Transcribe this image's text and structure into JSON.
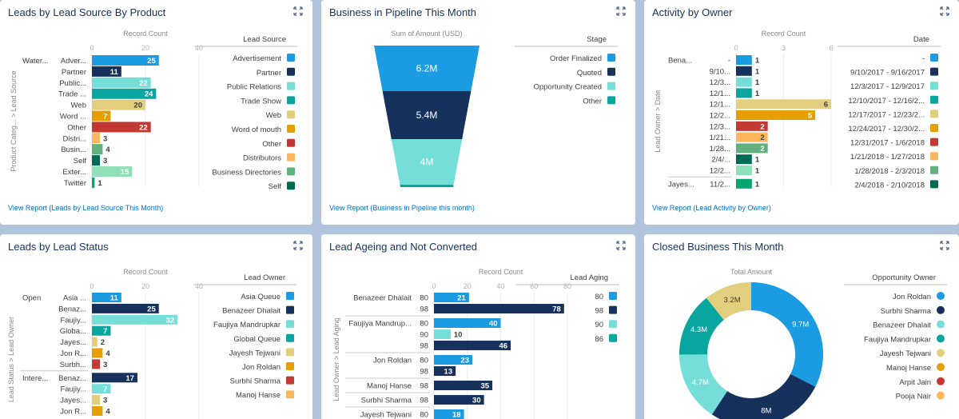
{
  "colors": {
    "c1": "#1b9ce2",
    "c2": "#16325c",
    "c3": "#76ded9",
    "c4": "#08a69e",
    "c5": "#e2ce7d",
    "c6": "#e69f00",
    "c7": "#c23934",
    "c8": "#ffb75d",
    "c9": "#60b17d",
    "c10": "#006a55",
    "c11": "#8fe0b8",
    "c12": "#00a66f"
  },
  "cards": {
    "lead_source": {
      "title": "Leads by Lead Source By Product",
      "view_report": "View Report (Leads by Lead Source This Month)"
    },
    "pipeline": {
      "title": "Business in Pipeline This Month",
      "view_report": "View Report (Business in Pipeline this month)"
    },
    "activity": {
      "title": "Activity by Owner",
      "view_report": "View Report (Lead Activity by Owner)"
    },
    "lead_status": {
      "title": "Leads by Lead Status"
    },
    "lead_ageing": {
      "title": "Lead Ageing and Not Converted"
    },
    "closed_business": {
      "title": "Closed Business This Month"
    }
  },
  "chart_data": [
    {
      "id": "lead_source",
      "type": "bar",
      "orientation": "horizontal",
      "xlabel": "Record Count",
      "ylabel": "Product Categ... > Lead Source",
      "xlim": [
        0,
        40
      ],
      "ticks": [
        "0",
        "20",
        "40"
      ],
      "group_label": "Water...",
      "categories": [
        "Adver...",
        "Partner",
        "Public...",
        "Trade ...",
        "Web",
        "Word ...",
        "Other",
        "Distri...",
        "Busin...",
        "Self",
        "Exter...",
        "Twitter"
      ],
      "values": [
        25,
        11,
        22,
        24,
        20,
        7,
        22,
        3,
        4,
        3,
        15,
        1
      ],
      "color_keys": [
        "c1",
        "c2",
        "c3",
        "c4",
        "c5",
        "c6",
        "c7",
        "c8",
        "c9",
        "c10",
        "c11",
        "c12"
      ],
      "legend_title": "Lead Source",
      "legend": [
        {
          "label": "Advertisement",
          "color_key": "c1"
        },
        {
          "label": "Partner",
          "color_key": "c2"
        },
        {
          "label": "Public Relations",
          "color_key": "c3"
        },
        {
          "label": "Trade Show",
          "color_key": "c4"
        },
        {
          "label": "Web",
          "color_key": "c5"
        },
        {
          "label": "Word of mouth",
          "color_key": "c6"
        },
        {
          "label": "Other",
          "color_key": "c7"
        },
        {
          "label": "Distributors",
          "color_key": "c8"
        },
        {
          "label": "Business Directories",
          "color_key": "c9"
        },
        {
          "label": "Self",
          "color_key": "c10"
        }
      ]
    },
    {
      "id": "pipeline",
      "type": "funnel",
      "title": "Sum of Amount (USD)",
      "categories": [
        "Order Finalized",
        "Quoted",
        "Opportunity Created",
        "Other"
      ],
      "values": [
        6.2,
        5.4,
        4.0,
        0.1
      ],
      "value_labels": [
        "6.2M",
        "5.4M",
        "4M",
        ""
      ],
      "unit": "M USD",
      "color_keys": [
        "c1",
        "c2",
        "c3",
        "c4"
      ],
      "legend_title": "Stage",
      "legend": [
        {
          "label": "Order Finalized",
          "color_key": "c1"
        },
        {
          "label": "Quoted",
          "color_key": "c2"
        },
        {
          "label": "Opportunity Created",
          "color_key": "c3"
        },
        {
          "label": "Other",
          "color_key": "c4"
        }
      ]
    },
    {
      "id": "activity",
      "type": "bar",
      "orientation": "horizontal",
      "xlabel": "Record Count",
      "ylabel": "Lead Owner > Date",
      "xlim": [
        0,
        6
      ],
      "ticks": [
        "0",
        "3",
        "6"
      ],
      "groups": [
        {
          "label": "Bena...",
          "rows": [
            {
              "label": "-",
              "value": 1,
              "color_key": "c1"
            },
            {
              "label": "9/10...",
              "value": 1,
              "color_key": "c2"
            },
            {
              "label": "12/3...",
              "value": 1,
              "color_key": "c3"
            },
            {
              "label": "12/1...",
              "value": 1,
              "color_key": "c4"
            },
            {
              "label": "12/1...",
              "value": 6,
              "color_key": "c5"
            },
            {
              "label": "12/2...",
              "value": 5,
              "color_key": "c6"
            },
            {
              "label": "12/3...",
              "value": 2,
              "color_key": "c7"
            },
            {
              "label": "1/21...",
              "value": 2,
              "color_key": "c8"
            },
            {
              "label": "1/28...",
              "value": 2,
              "color_key": "c9"
            },
            {
              "label": "2/4/...",
              "value": 1,
              "color_key": "c10"
            },
            {
              "label": "12/2...",
              "value": 1,
              "color_key": "c11"
            }
          ]
        },
        {
          "label": "Jayes...",
          "rows": [
            {
              "label": "11/2...",
              "value": 1,
              "color_key": "c12"
            }
          ]
        }
      ],
      "legend_title": "Date",
      "legend": [
        {
          "label": "-",
          "color_key": "c1"
        },
        {
          "label": "9/10/2017 - 9/16/2017",
          "color_key": "c2"
        },
        {
          "label": "12/3/2017 - 12/9/2017",
          "color_key": "c3"
        },
        {
          "label": "12/10/2017 - 12/16/2...",
          "color_key": "c4"
        },
        {
          "label": "12/17/2017 - 12/23/2...",
          "color_key": "c5"
        },
        {
          "label": "12/24/2017 - 12/30/2...",
          "color_key": "c6"
        },
        {
          "label": "12/31/2017 - 1/6/2018",
          "color_key": "c7"
        },
        {
          "label": "1/21/2018 - 1/27/2018",
          "color_key": "c8"
        },
        {
          "label": "1/28/2018 - 2/3/2018",
          "color_key": "c9"
        },
        {
          "label": "2/4/2018 - 2/10/2018",
          "color_key": "c10"
        }
      ]
    },
    {
      "id": "lead_status",
      "type": "bar",
      "orientation": "horizontal",
      "xlabel": "Record Count",
      "ylabel": "Lead Status > Lead Owner",
      "xlim": [
        0,
        40
      ],
      "ticks": [
        "0",
        "20",
        "40"
      ],
      "groups": [
        {
          "label": "Open",
          "rows": [
            {
              "label": "Asia ...",
              "value": 11,
              "color_key": "c1"
            },
            {
              "label": "Benaz...",
              "value": 25,
              "color_key": "c2"
            },
            {
              "label": "Faujiy...",
              "value": 32,
              "color_key": "c3"
            },
            {
              "label": "Globa...",
              "value": 7,
              "color_key": "c4"
            },
            {
              "label": "Jayes...",
              "value": 2,
              "color_key": "c5"
            },
            {
              "label": "Jon R...",
              "value": 4,
              "color_key": "c6"
            },
            {
              "label": "Surbh...",
              "value": 3,
              "color_key": "c7"
            }
          ]
        },
        {
          "label": "Intere...",
          "rows": [
            {
              "label": "Benaz...",
              "value": 17,
              "color_key": "c2"
            },
            {
              "label": "Faujiy...",
              "value": 7,
              "color_key": "c3"
            },
            {
              "label": "Jayes...",
              "value": 3,
              "color_key": "c5"
            },
            {
              "label": "Jon R...",
              "value": 4,
              "color_key": "c6"
            }
          ]
        }
      ],
      "legend_title": "Lead Owner",
      "legend": [
        {
          "label": "Asia Queue",
          "color_key": "c1"
        },
        {
          "label": "Benazeer Dhalait",
          "color_key": "c2"
        },
        {
          "label": "Faujiya Mandrupkar",
          "color_key": "c3"
        },
        {
          "label": "Global Queue",
          "color_key": "c4"
        },
        {
          "label": "Jayesh Tejwani",
          "color_key": "c5"
        },
        {
          "label": "Jon Roldan",
          "color_key": "c6"
        },
        {
          "label": "Surbhi Sharma",
          "color_key": "c7"
        },
        {
          "label": "Manoj Hanse",
          "color_key": "c8"
        }
      ]
    },
    {
      "id": "lead_ageing",
      "type": "bar",
      "orientation": "horizontal",
      "xlabel": "Record Count",
      "ylabel": "Lead Owner > Lead Aging",
      "xlim": [
        0,
        80
      ],
      "ticks": [
        "0",
        "20",
        "40",
        "60",
        "80"
      ],
      "groups": [
        {
          "label": "Benazeer Dhalait",
          "rows": [
            {
              "label": "80",
              "value": 21,
              "color_key": "c1"
            },
            {
              "label": "98",
              "value": 78,
              "color_key": "c2"
            }
          ]
        },
        {
          "label": "Faujiya Mandrup...",
          "rows": [
            {
              "label": "80",
              "value": 40,
              "color_key": "c1"
            },
            {
              "label": "90",
              "value": 10,
              "color_key": "c3"
            },
            {
              "label": "98",
              "value": 46,
              "color_key": "c2"
            }
          ]
        },
        {
          "label": "Jon Roldan",
          "rows": [
            {
              "label": "80",
              "value": 23,
              "color_key": "c1"
            },
            {
              "label": "98",
              "value": 13,
              "color_key": "c2"
            }
          ]
        },
        {
          "label": "Manoj Hanse",
          "rows": [
            {
              "label": "98",
              "value": 35,
              "color_key": "c2"
            }
          ]
        },
        {
          "label": "Surbhi Sharma",
          "rows": [
            {
              "label": "98",
              "value": 30,
              "color_key": "c2"
            }
          ]
        },
        {
          "label": "Jayesh Tejwani",
          "rows": [
            {
              "label": "80",
              "value": 18,
              "color_key": "c1"
            }
          ]
        }
      ],
      "legend_title": "Lead Aging",
      "legend": [
        {
          "label": "80",
          "color_key": "c1"
        },
        {
          "label": "98",
          "color_key": "c2"
        },
        {
          "label": "90",
          "color_key": "c3"
        },
        {
          "label": "86",
          "color_key": "c4"
        }
      ]
    },
    {
      "id": "closed_business",
      "type": "pie",
      "donut": true,
      "title": "Total Amount",
      "categories": [
        "Jon Roldan",
        "Surbhi Sharma",
        "Benazeer Dhalait",
        "Faujiya Mandrupkar",
        "Jayesh Tejwani"
      ],
      "values": [
        9.7,
        8.0,
        4.7,
        4.3,
        3.2
      ],
      "value_labels": [
        "9.7M",
        "8M",
        "4.7M",
        "4.3M",
        "3.2M"
      ],
      "unit": "M",
      "color_keys": [
        "c1",
        "c2",
        "c3",
        "c4",
        "c5"
      ],
      "legend_title": "Opportunity Owner",
      "legend": [
        {
          "label": "Jon Roldan",
          "color_key": "c1"
        },
        {
          "label": "Surbhi Sharma",
          "color_key": "c2"
        },
        {
          "label": "Benazeer Dhalait",
          "color_key": "c3"
        },
        {
          "label": "Faujiya Mandrupkar",
          "color_key": "c4"
        },
        {
          "label": "Jayesh Tejwani",
          "color_key": "c5"
        },
        {
          "label": "Manoj Hanse",
          "color_key": "c6"
        },
        {
          "label": "Arpit Jain",
          "color_key": "c7"
        },
        {
          "label": "Pooja Nair",
          "color_key": "c8"
        }
      ]
    }
  ]
}
